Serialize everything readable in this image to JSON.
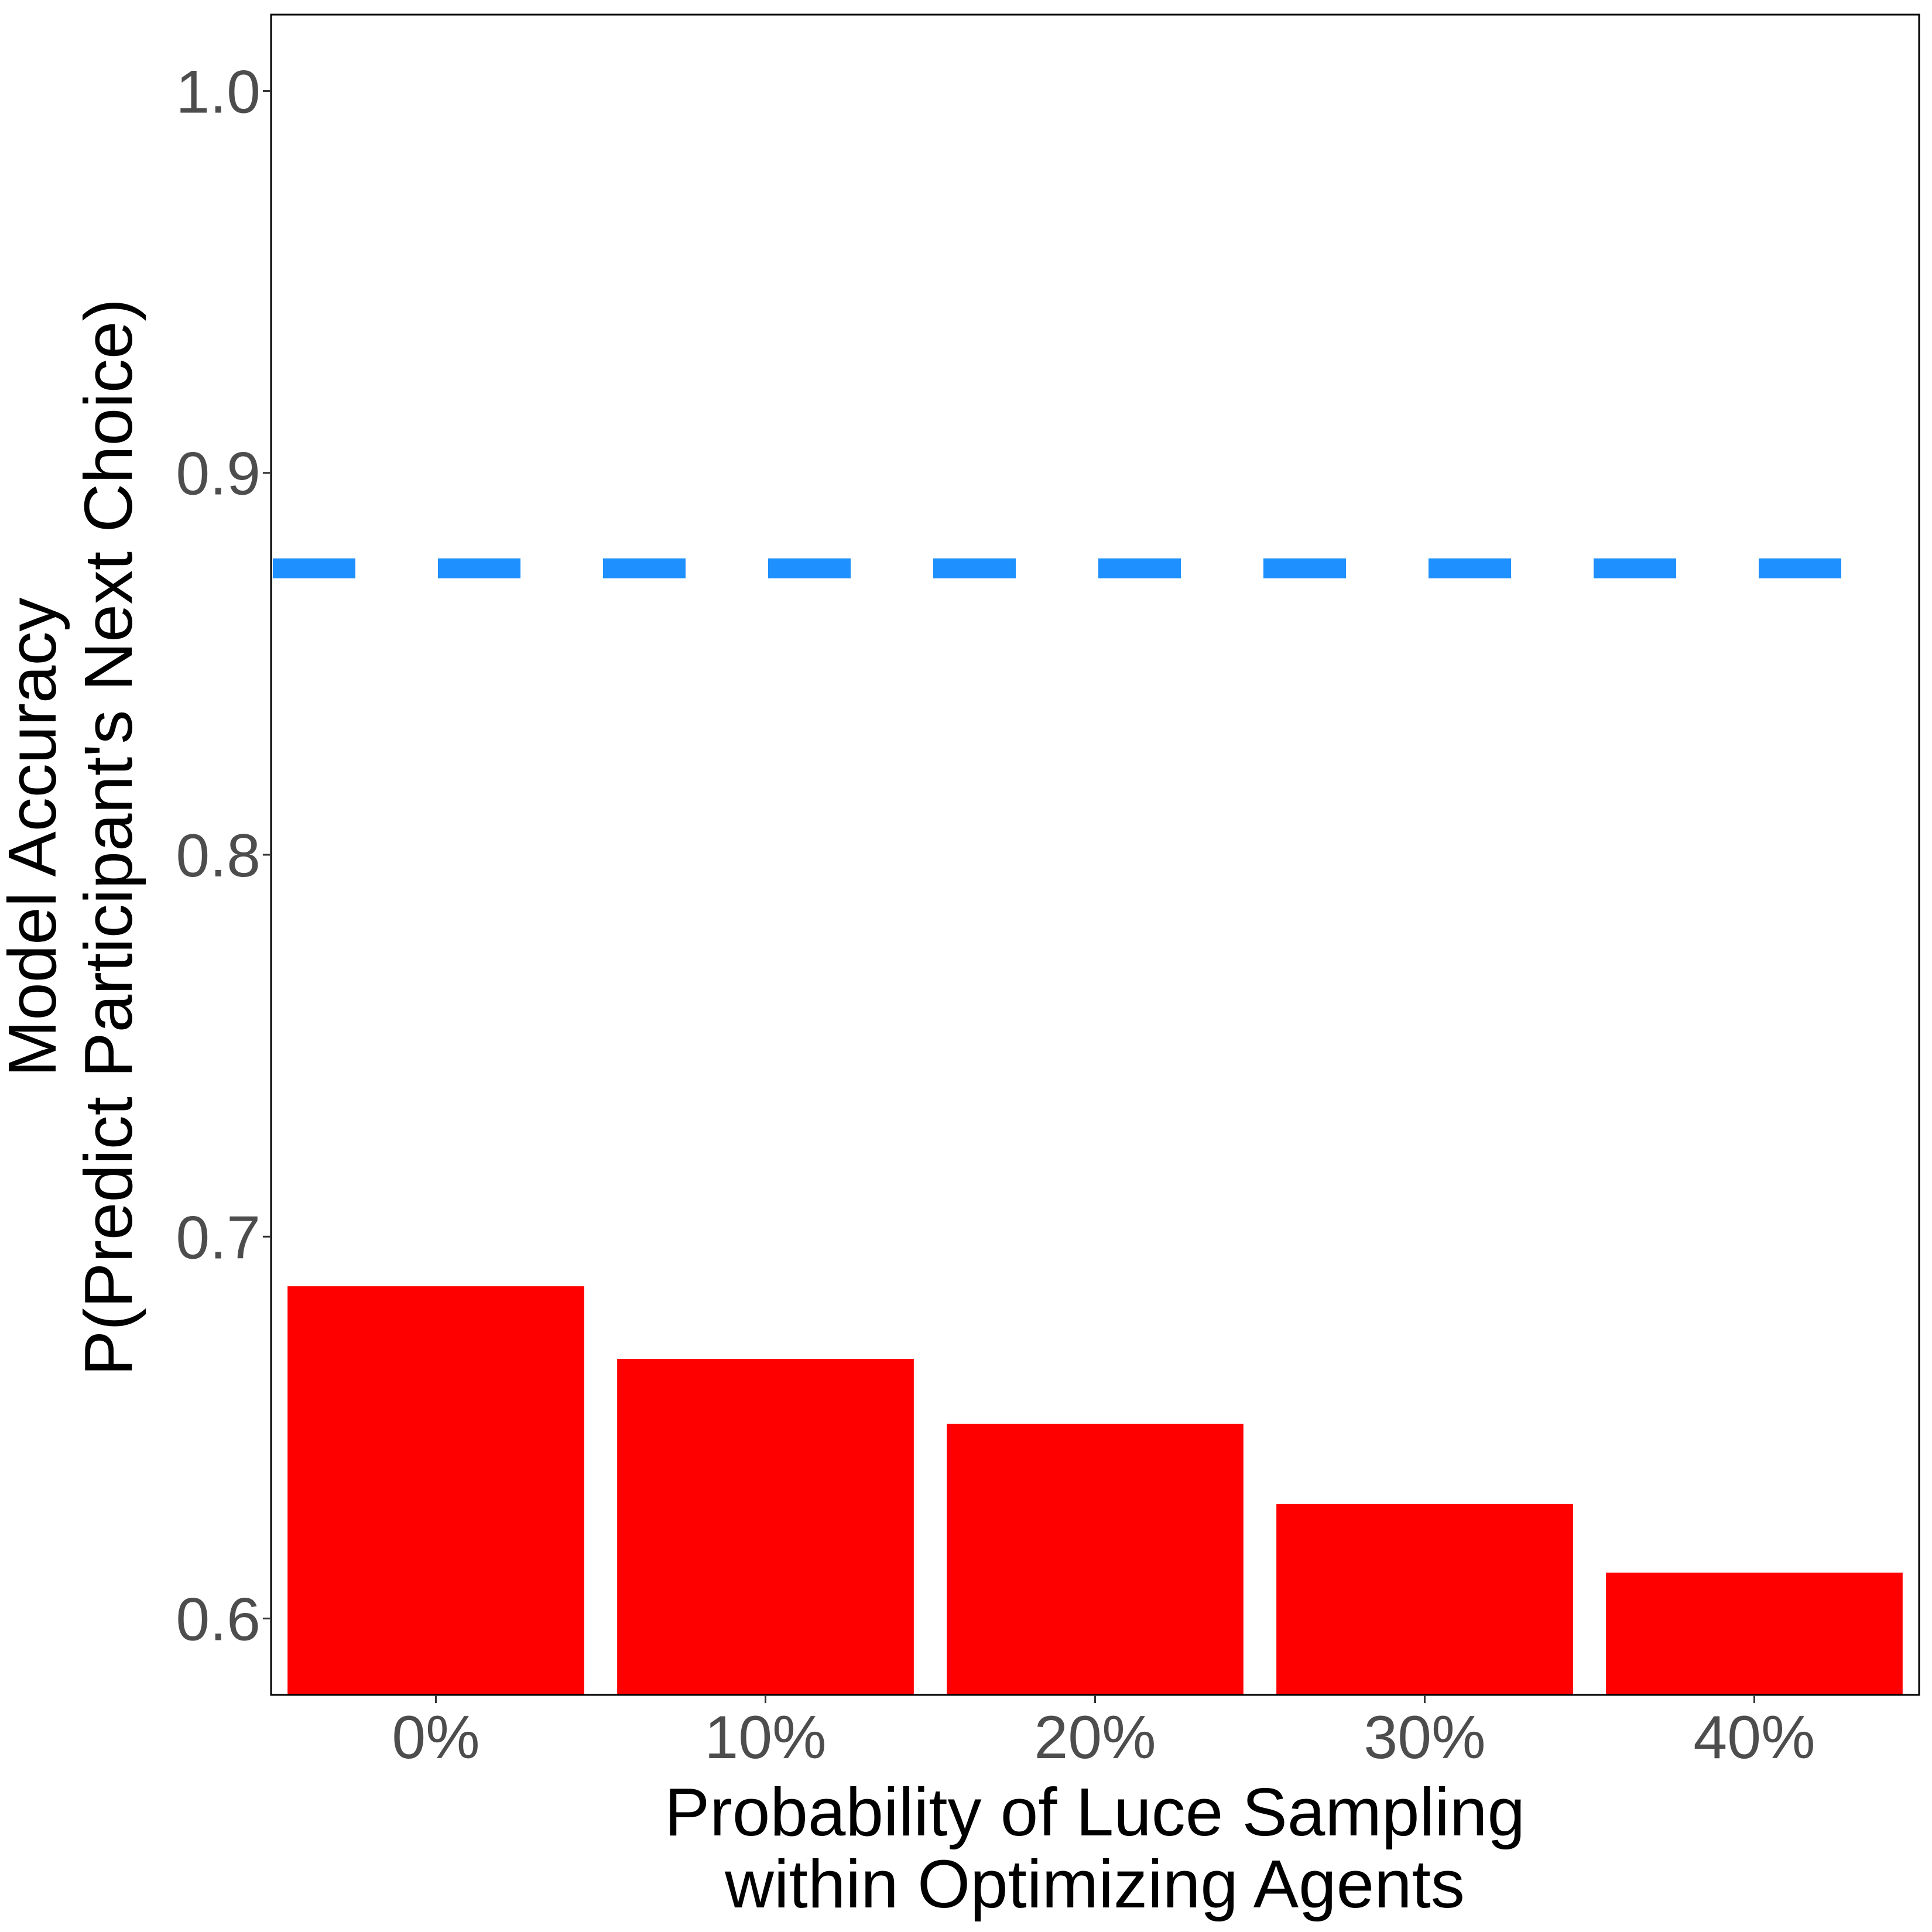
{
  "chart_data": {
    "type": "bar",
    "title": "",
    "categories": [
      "0%",
      "10%",
      "20%",
      "30%",
      "40%"
    ],
    "values": [
      0.687,
      0.668,
      0.651,
      0.63,
      0.612
    ],
    "xlabel_lines": [
      "Probability of Luce Sampling",
      "within Optimizing Agents"
    ],
    "ylabel_lines": [
      "Model Accuracy",
      "P(Predict Participant's Next Choice)"
    ],
    "ylim": [
      0.58,
      1.02
    ],
    "yticks": [
      0.6,
      0.7,
      0.8,
      0.9,
      1.0
    ],
    "ytick_labels": [
      "0.6",
      "0.7",
      "0.8",
      "0.9",
      "1.0"
    ],
    "reference_line": {
      "y": 0.875,
      "style": "dashed",
      "color": "#1e90ff"
    },
    "bar_color": "#ff0000",
    "grid": false,
    "legend": "none"
  }
}
